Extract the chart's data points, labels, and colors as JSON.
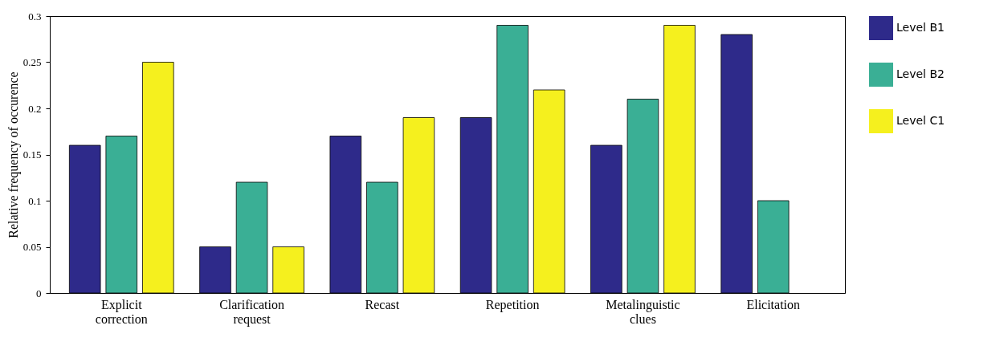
{
  "chart_data": {
    "type": "bar",
    "ylabel": "Relative frequency of occurence",
    "categories": [
      "Explicit correction",
      "Clarification request",
      "Recast",
      "Repetition",
      "Metalinguistic clues",
      "Elicitation"
    ],
    "series": [
      {
        "name": "Level B1",
        "color": "#2e2a8a",
        "values": [
          0.16,
          0.05,
          0.17,
          0.19,
          0.16,
          0.28
        ]
      },
      {
        "name": "Level B2",
        "color": "#3aaf95",
        "values": [
          0.17,
          0.12,
          0.12,
          0.29,
          0.21,
          0.1
        ]
      },
      {
        "name": "Level C1",
        "color": "#f5f01e",
        "values": [
          0.25,
          0.05,
          0.19,
          0.22,
          0.29,
          null
        ]
      }
    ],
    "ylim": [
      0,
      0.3
    ],
    "yticks": [
      0,
      0.05,
      0.1,
      0.15,
      0.2,
      0.25,
      0.3
    ],
    "grid": false,
    "legend": "right"
  }
}
